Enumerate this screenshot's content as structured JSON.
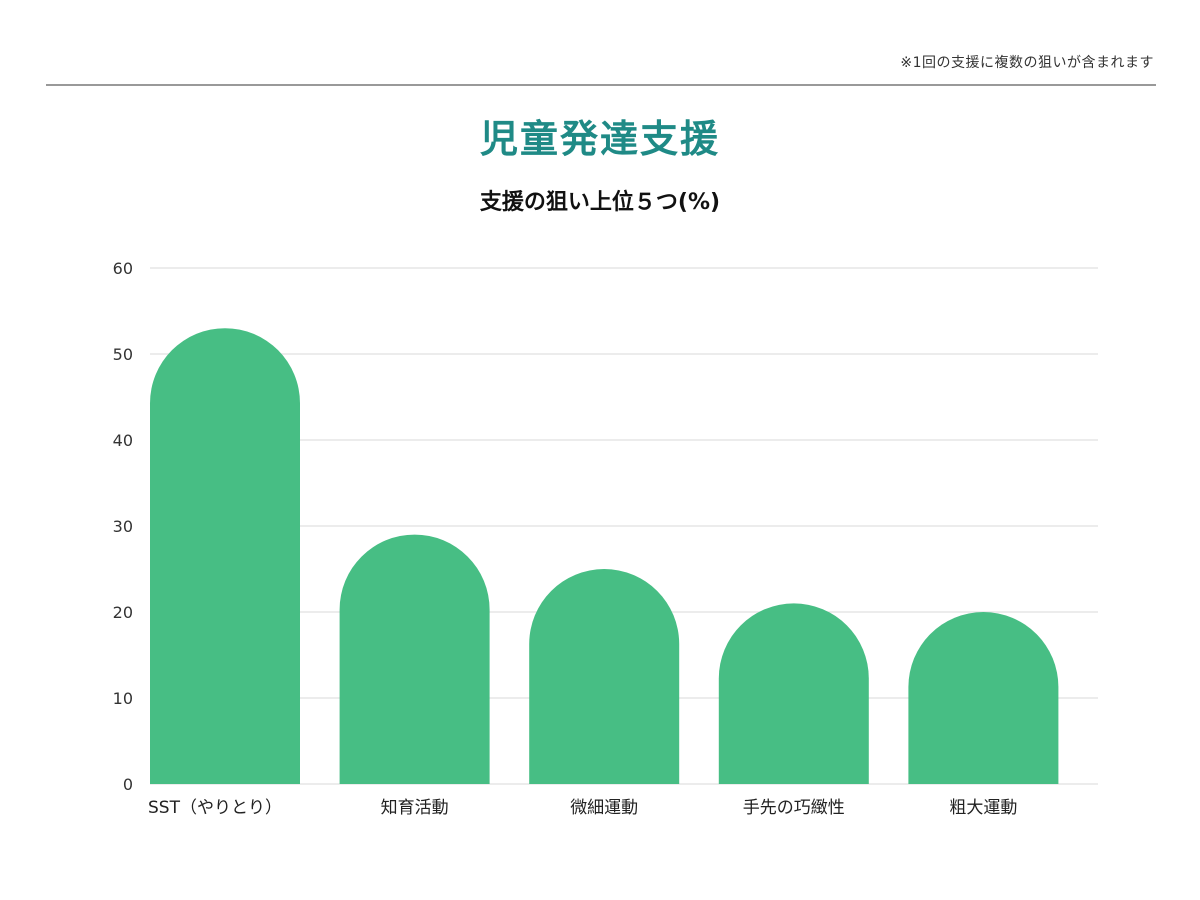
{
  "header": {
    "note": "※1回の支援に複数の狙いが含まれます",
    "title": "児童発達支援",
    "subtitle": "支援の狙い上位５つ(%)"
  },
  "colors": {
    "title": "#1f8a86",
    "bar": "#47be84",
    "grid": "#e6e6e6",
    "rule": "#999999"
  },
  "chart_data": {
    "type": "bar",
    "title": "支援の狙い上位５つ(%)",
    "categories": [
      "SST（やりとり）",
      "知育活動",
      "微細運動",
      "手先の巧緻性",
      "粗大運動"
    ],
    "values": [
      53,
      29,
      25,
      21,
      20
    ],
    "xlabel": "",
    "ylabel": "",
    "ylim": [
      0,
      60
    ],
    "yticks": [
      0,
      10,
      20,
      30,
      40,
      50,
      60
    ],
    "grid": true,
    "legend": "none",
    "bar_style": "rounded-top"
  }
}
